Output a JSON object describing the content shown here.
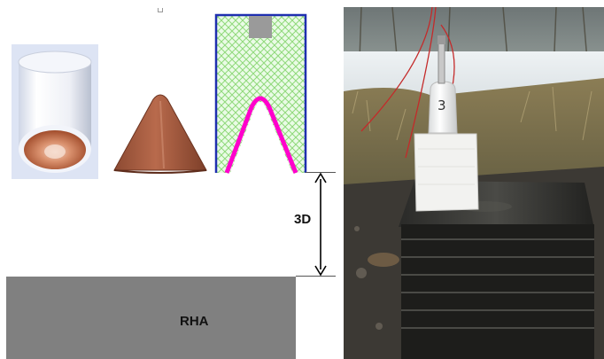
{
  "diagram": {
    "standoff_label": "3D",
    "target_label": "RHA",
    "colors": {
      "liner_outline": "#ff00cc",
      "casing_outline": "#1f2fb0",
      "explosive_hatch": "#8fd97a",
      "detonator": "#9a9a9a",
      "target_plate": "#808080",
      "copper": "#b86a4c"
    }
  },
  "photo": {
    "charge_number": "3"
  }
}
